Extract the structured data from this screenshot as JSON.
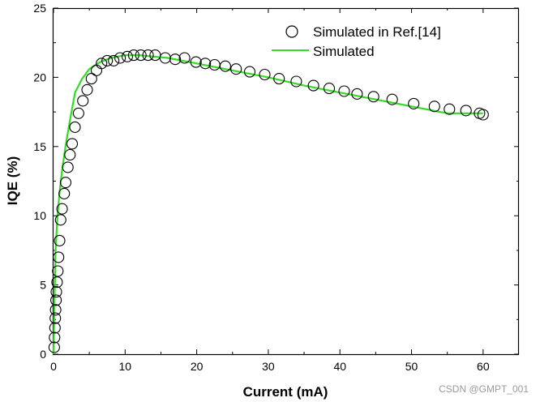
{
  "chart_data": {
    "type": "line",
    "title": "",
    "xlabel": "Current (mA)",
    "ylabel": "IQE (%)",
    "xlim": [
      0,
      65
    ],
    "ylim": [
      0,
      25
    ],
    "xticks": [
      0,
      10,
      20,
      30,
      40,
      50,
      60
    ],
    "yticks": [
      0,
      5,
      10,
      15,
      20,
      25
    ],
    "grid": false,
    "legend_position": "top-right",
    "series": [
      {
        "name": "Simulated in Ref.[14]",
        "style": "open-circle",
        "color": "#000000",
        "x": [
          0.1,
          0.15,
          0.2,
          0.25,
          0.3,
          0.35,
          0.4,
          0.5,
          0.6,
          0.7,
          0.85,
          1.0,
          1.2,
          1.5,
          1.7,
          2.0,
          2.3,
          2.6,
          3.0,
          3.5,
          4.1,
          4.7,
          5.3,
          6.0,
          6.7,
          7.5,
          8.4,
          9.3,
          10.3,
          11.2,
          12.2,
          13.2,
          14.2,
          15.6,
          17.0,
          18.3,
          19.9,
          21.2,
          22.5,
          24.0,
          25.5,
          27.4,
          29.5,
          31.5,
          33.9,
          36.3,
          38.5,
          40.6,
          42.4,
          44.7,
          47.3,
          50.3,
          53.2,
          55.3,
          57.6,
          59.5,
          60.0
        ],
        "y": [
          0.5,
          1.2,
          1.9,
          2.6,
          3.2,
          3.9,
          4.5,
          5.2,
          6.0,
          7.0,
          8.2,
          9.7,
          10.5,
          11.6,
          12.4,
          13.5,
          14.4,
          15.2,
          16.4,
          17.4,
          18.3,
          19.1,
          19.9,
          20.5,
          21.0,
          21.2,
          21.2,
          21.4,
          21.5,
          21.6,
          21.6,
          21.6,
          21.6,
          21.4,
          21.3,
          21.4,
          21.1,
          21.0,
          20.9,
          20.8,
          20.6,
          20.4,
          20.2,
          19.9,
          19.7,
          19.4,
          19.2,
          19.0,
          18.8,
          18.6,
          18.4,
          18.1,
          17.9,
          17.7,
          17.6,
          17.4,
          17.3
        ]
      },
      {
        "name": "Simulated",
        "style": "line",
        "color": "#33dd22",
        "x": [
          0,
          0.15,
          0.3,
          0.5,
          0.8,
          1.2,
          1.7,
          2.3,
          3.0,
          4.0,
          5.0,
          6.5,
          8.0,
          10.0,
          12.0,
          14.0,
          16.0,
          18.0,
          20.0,
          25.0,
          30.0,
          35.0,
          40.0,
          45.0,
          50.0,
          55.0,
          60.0
        ],
        "y": [
          0,
          4.0,
          7.5,
          9.5,
          11.5,
          13.3,
          15.1,
          16.9,
          18.9,
          19.9,
          20.6,
          21.1,
          21.4,
          21.6,
          21.6,
          21.5,
          21.4,
          21.2,
          21.0,
          20.5,
          20.0,
          19.4,
          18.9,
          18.4,
          17.9,
          17.4,
          17.4
        ]
      }
    ]
  },
  "watermark": "CSDN @GMPT_001"
}
